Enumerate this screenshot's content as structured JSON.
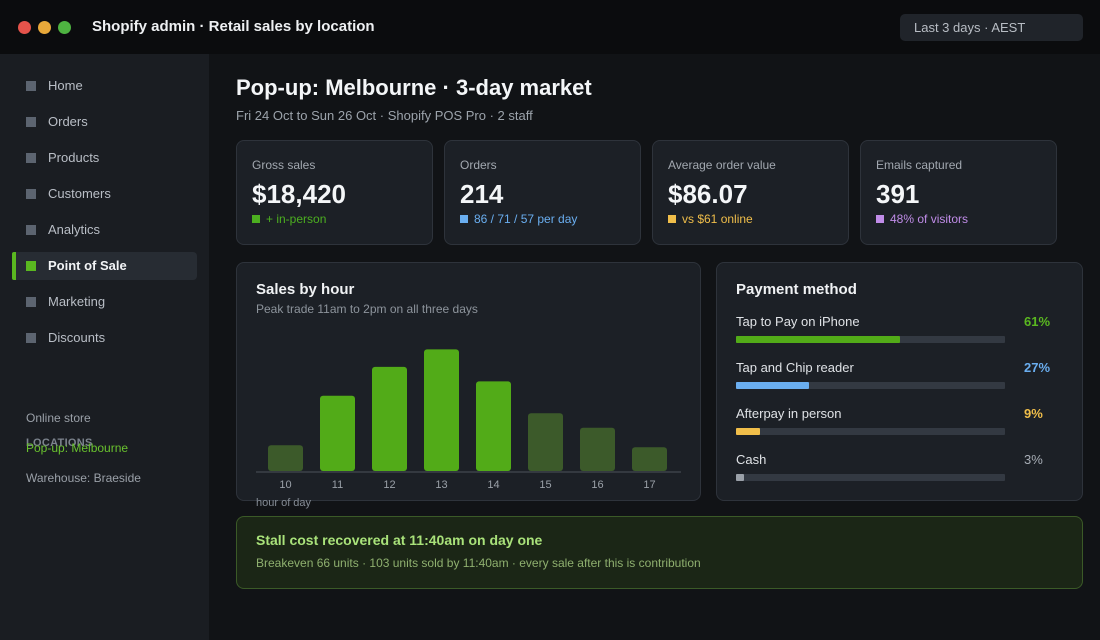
{
  "window": {
    "title": "Shopify admin  ·  Retail sales by location",
    "date_range": "Last 3 days  ·  AEST"
  },
  "sidebar": {
    "items": [
      {
        "label": "Home",
        "name": "home"
      },
      {
        "label": "Orders",
        "name": "orders"
      },
      {
        "label": "Products",
        "name": "products"
      },
      {
        "label": "Customers",
        "name": "customers"
      },
      {
        "label": "Analytics",
        "name": "analytics"
      },
      {
        "label": "Point of Sale",
        "name": "point-of-sale",
        "active": true
      },
      {
        "label": "Marketing",
        "name": "marketing"
      },
      {
        "label": "Discounts",
        "name": "discounts"
      }
    ],
    "locations_heading": "LOCATIONS",
    "locations": [
      {
        "label": "Online store"
      },
      {
        "label": "Pop-up: Melbourne",
        "active": true
      },
      {
        "label": "Warehouse: Braeside"
      }
    ]
  },
  "page": {
    "title": "Pop-up: Melbourne  ·  3-day market",
    "subtitle": "Fri 24 Oct to Sun 26 Oct  ·  Shopify POS Pro  ·  2 staff"
  },
  "kpis": [
    {
      "label": "Gross sales",
      "value": "$18,420",
      "note": "+ in-person",
      "color": "#4caf20"
    },
    {
      "label": "Orders",
      "value": "214",
      "note": "86 / 71 / 57 per day",
      "color": "#6aaef0"
    },
    {
      "label": "Average order value",
      "value": "$86.07",
      "note": "vs $61 online",
      "color": "#f0be4a"
    },
    {
      "label": "Emails captured",
      "value": "391",
      "note": "48% of visitors",
      "color": "#c08ce8"
    }
  ],
  "sales_chart": {
    "title": "Sales by hour",
    "subtitle": "Peak trade 11am to 2pm on all three days",
    "xlabel": "hour of day"
  },
  "chart_data": {
    "type": "bar",
    "categories": [
      "10",
      "11",
      "12",
      "13",
      "14",
      "15",
      "16",
      "17"
    ],
    "values": [
      25,
      73,
      101,
      118,
      87,
      56,
      42,
      23
    ],
    "highlight": [
      false,
      true,
      true,
      true,
      true,
      false,
      false,
      false
    ],
    "xlabel": "hour of day",
    "ylabel": "",
    "ylim": [
      0,
      130
    ],
    "colors": {
      "peak": "#52ab18",
      "offpeak": "#3c5a2a",
      "axis": "#4b525b"
    }
  },
  "payment": {
    "title": "Payment method",
    "methods": [
      {
        "label": "Tap to Pay on iPhone",
        "pct_label": "61%",
        "share": 0.61,
        "color": "#52ab18",
        "text_color": "#5ab820"
      },
      {
        "label": "Tap and Chip reader",
        "pct_label": "27%",
        "share": 0.27,
        "color": "#6aaef0",
        "text_color": "#6aaef0"
      },
      {
        "label": "Afterpay in person",
        "pct_label": "9%",
        "share": 0.09,
        "color": "#f0be4a",
        "text_color": "#f0be4a"
      },
      {
        "label": "Cash",
        "pct_label": "3%",
        "share": 0.03,
        "color": "#9aa0a8",
        "text_color": "#a7adb5"
      }
    ]
  },
  "banner": {
    "title": "Stall cost recovered at 11:40am on day one",
    "text": "Breakeven 66 units  ·  103 units sold by 11:40am  ·  every sale after this is contribution"
  }
}
